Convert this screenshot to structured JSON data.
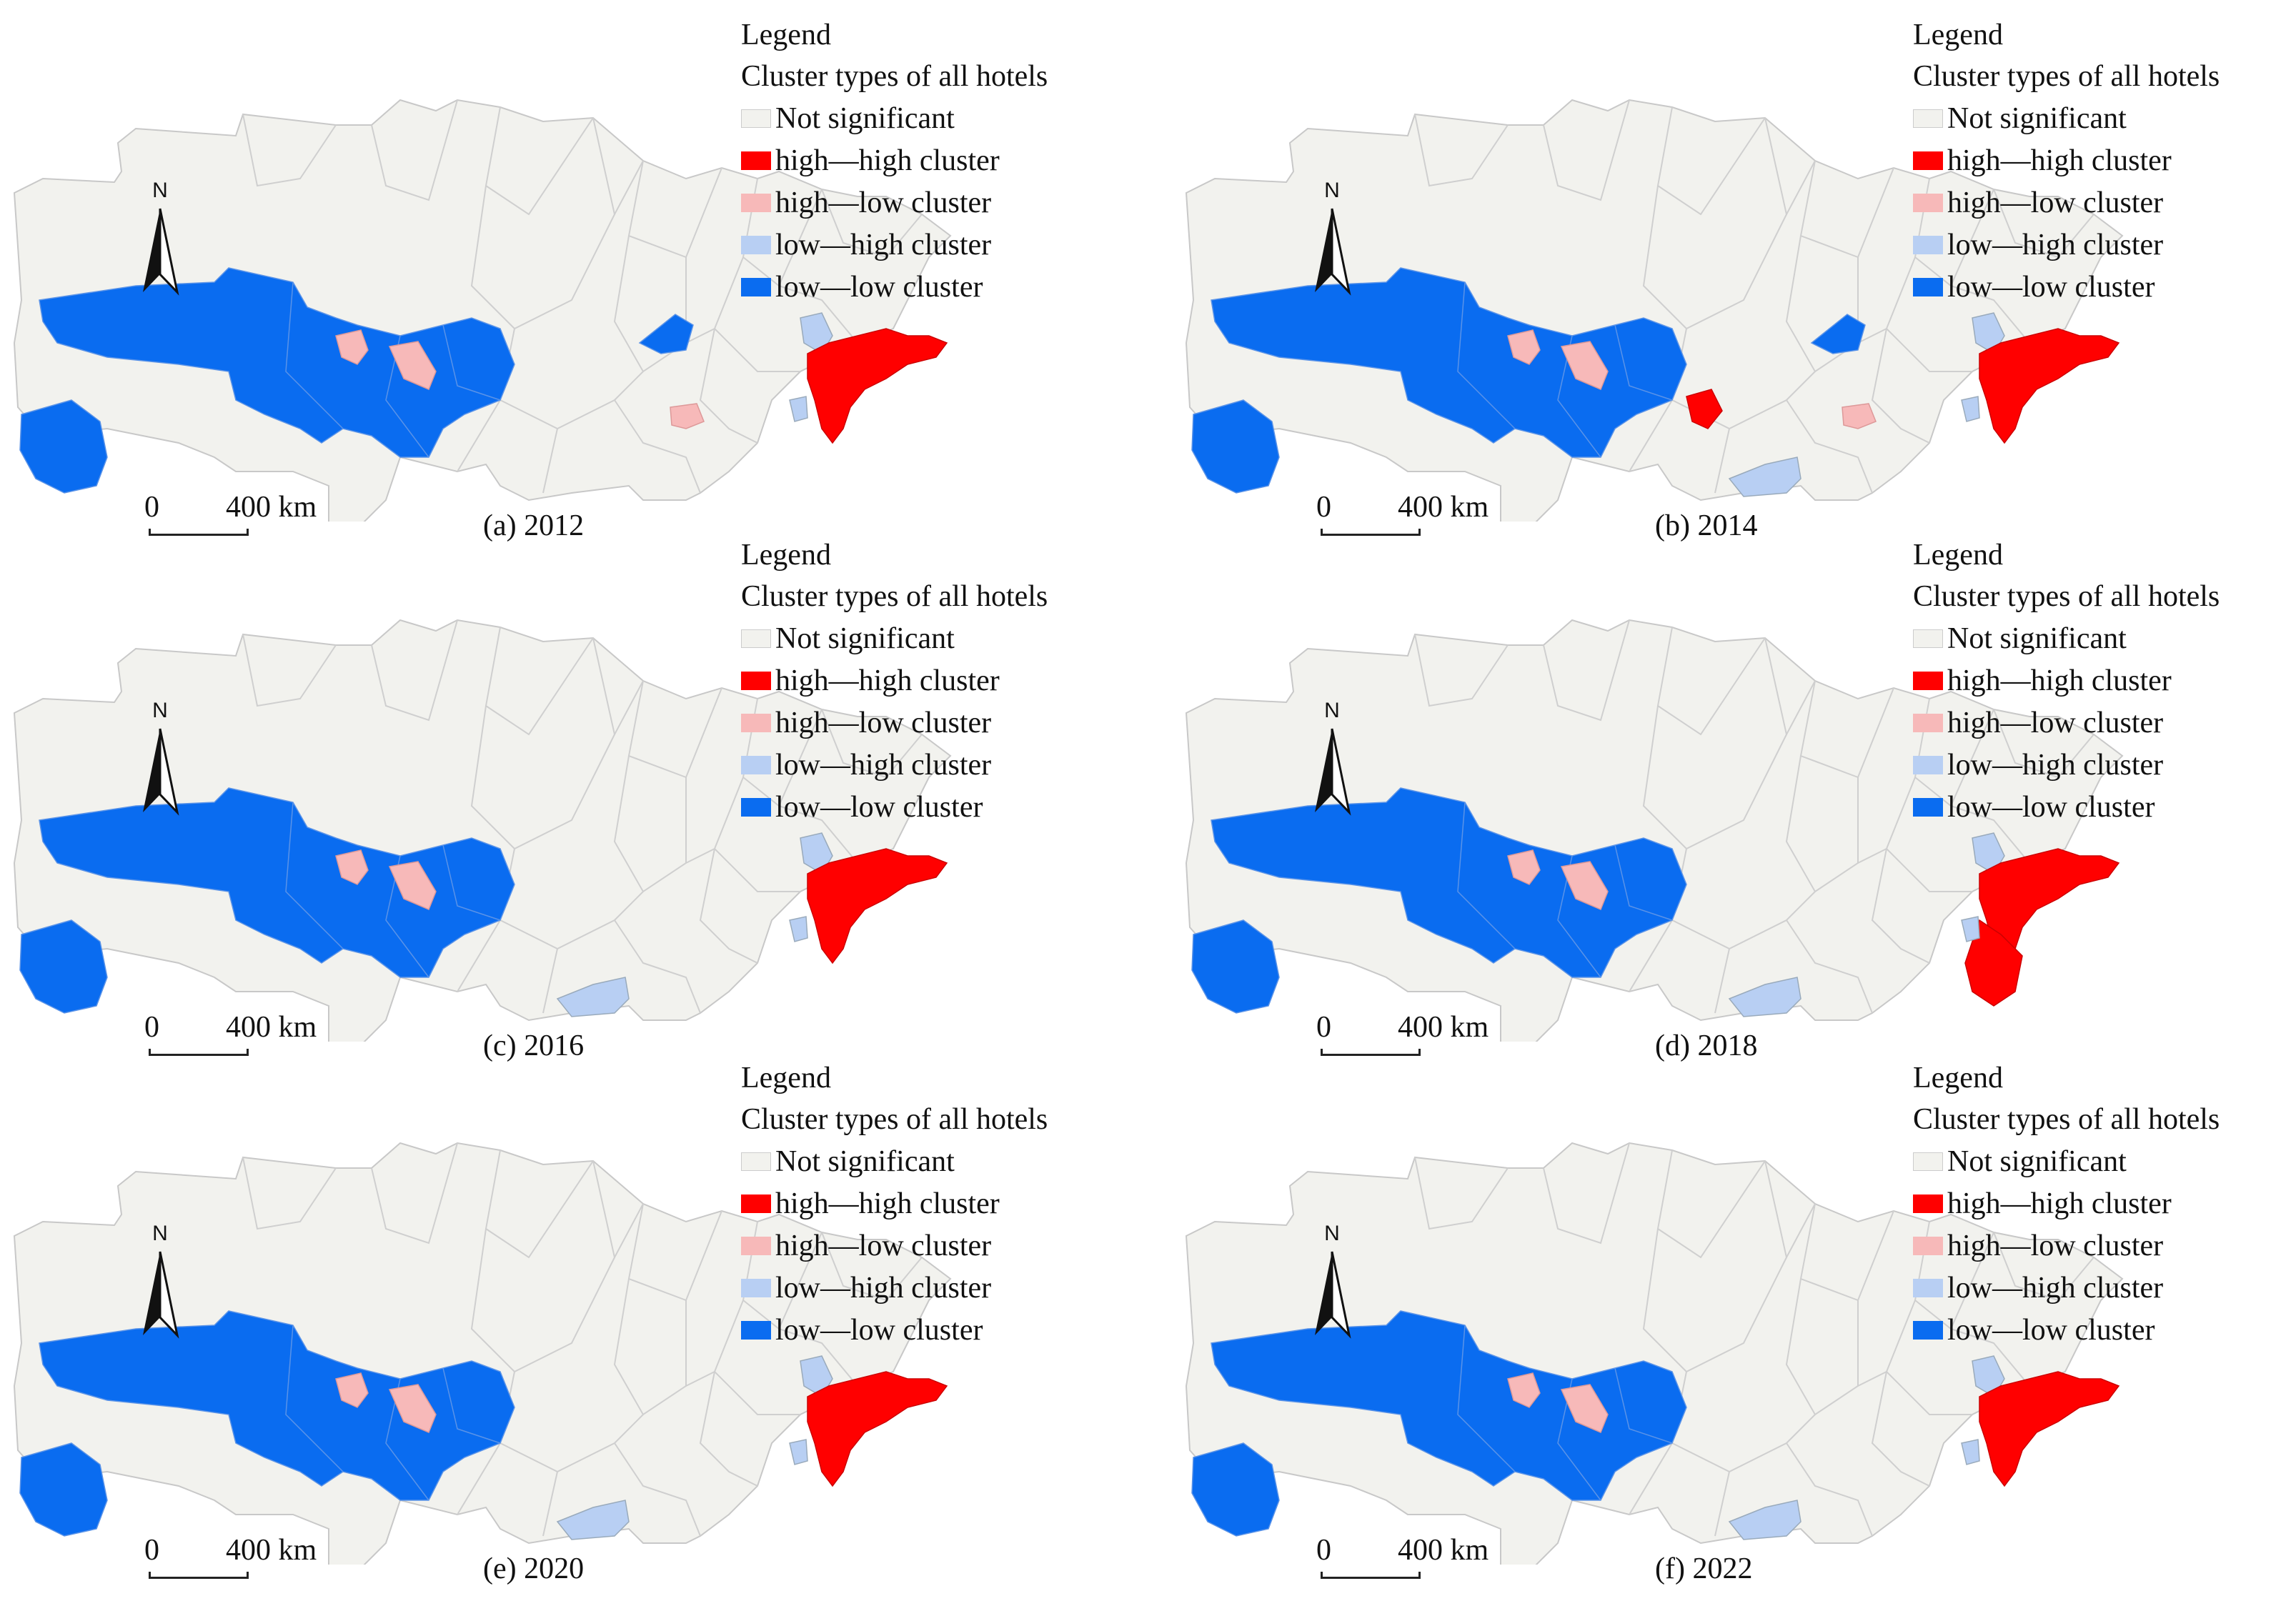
{
  "legend": {
    "title": "Legend",
    "subtitle": "Cluster types of all hotels",
    "items": [
      {
        "label": "Not significant",
        "color": "#f2f2ee"
      },
      {
        "label": "high—high cluster",
        "color": "#ff0000"
      },
      {
        "label": "high—low cluster",
        "color": "#f7b9b9"
      },
      {
        "label": "low—high cluster",
        "color": "#b8cff3"
      },
      {
        "label": "low—low cluster",
        "color": "#0a6cf0"
      }
    ]
  },
  "north_label": "N",
  "scale": {
    "zero": "0",
    "max": "400 km"
  },
  "panels": [
    {
      "caption": "(a) 2012",
      "hh": true,
      "hh_coast": false,
      "ll_east": true,
      "hl_east": true,
      "lh_south": false,
      "hh_mid": false
    },
    {
      "caption": "(b) 2014",
      "hh": true,
      "hh_coast": false,
      "ll_east": true,
      "hl_east": true,
      "lh_south": true,
      "hh_mid": true
    },
    {
      "caption": "(c) 2016",
      "hh": true,
      "hh_coast": false,
      "ll_east": false,
      "hl_east": false,
      "lh_south": true,
      "hh_mid": false
    },
    {
      "caption": "(d) 2018",
      "hh": true,
      "hh_coast": true,
      "ll_east": false,
      "hl_east": false,
      "lh_south": true,
      "hh_mid": false
    },
    {
      "caption": "(e) 2020",
      "hh": true,
      "hh_coast": false,
      "ll_east": false,
      "hl_east": false,
      "lh_south": true,
      "hh_mid": false
    },
    {
      "caption": "(f) 2022",
      "hh": true,
      "hh_coast": false,
      "ll_east": false,
      "hl_east": false,
      "lh_south": true,
      "hh_mid": false
    }
  ]
}
